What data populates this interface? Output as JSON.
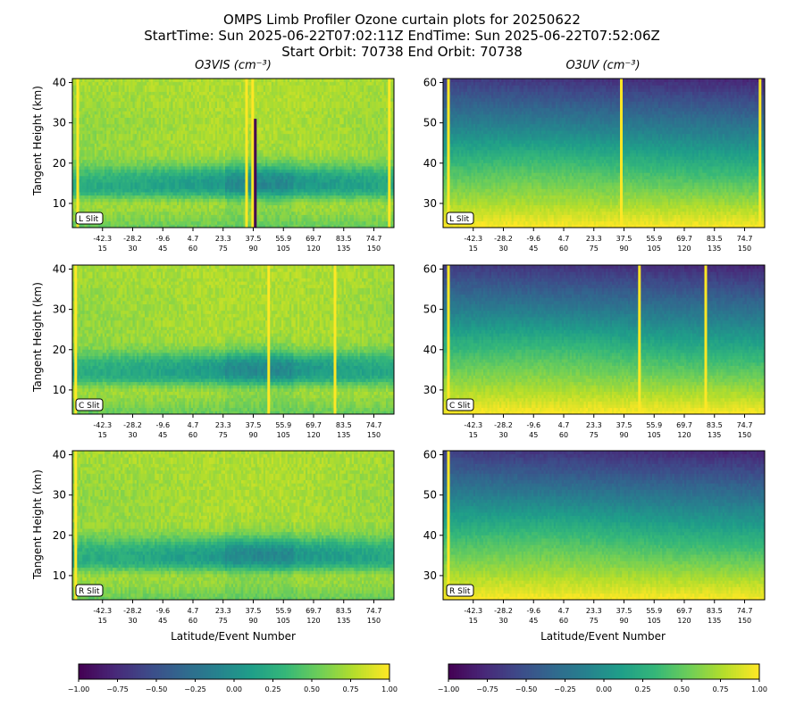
{
  "figure": {
    "title_lines": [
      "OMPS Limb Profiler Ozone curtain plots for 20250622",
      "StartTime: Sun 2025-06-22T07:02:11Z  EndTime: Sun 2025-06-22T07:52:06Z",
      "Start Orbit: 70738 End Orbit: 70738"
    ],
    "left_title": "O3VIS (cm⁻³)",
    "right_title": "O3UV (cm⁻³)",
    "ylabel": "Tangent Height (km)",
    "xlabel": "Latitude/Event Number"
  },
  "colormap": "viridis",
  "colors": {
    "line_yellow": "#fde725",
    "dark": "#440154"
  },
  "chart_data": [
    {
      "type": "heatmap",
      "column": "O3VIS",
      "slit": "L Slit",
      "yticks": [
        10,
        20,
        30,
        40
      ],
      "ylim": [
        4,
        41
      ],
      "xticks_lat": [
        "-42.3",
        "-28.2",
        "-9.6",
        "4.7",
        "23.3",
        "37.5",
        "55.9",
        "69.7",
        "83.5",
        "74.7"
      ],
      "xticks_event": [
        "15",
        "30",
        "45",
        "60",
        "75",
        "90",
        "105",
        "120",
        "135",
        "150"
      ],
      "bright_lines_event": [
        2,
        86,
        89,
        157
      ],
      "dark_anomaly_event": 89
    },
    {
      "type": "heatmap",
      "column": "O3UV",
      "slit": "L Slit",
      "yticks": [
        30,
        40,
        50,
        60
      ],
      "ylim": [
        24,
        61
      ],
      "xticks_lat": [
        "-42.3",
        "-28.2",
        "-9.6",
        "4.7",
        "23.3",
        "37.5",
        "55.9",
        "69.7",
        "83.5",
        "74.7"
      ],
      "xticks_event": [
        "15",
        "30",
        "45",
        "60",
        "75",
        "90",
        "105",
        "120",
        "135",
        "150"
      ],
      "bright_lines_event": [
        2,
        88,
        157
      ]
    },
    {
      "type": "heatmap",
      "column": "O3VIS",
      "slit": "C Slit",
      "yticks": [
        10,
        20,
        30,
        40
      ],
      "ylim": [
        4,
        41
      ],
      "xticks_lat": [
        "-42.3",
        "-28.2",
        "-9.6",
        "4.7",
        "23.3",
        "37.5",
        "55.9",
        "69.7",
        "83.5",
        "74.7"
      ],
      "xticks_event": [
        "15",
        "30",
        "45",
        "60",
        "75",
        "90",
        "105",
        "120",
        "135",
        "150"
      ],
      "bright_lines_event": [
        1,
        97,
        130
      ]
    },
    {
      "type": "heatmap",
      "column": "O3UV",
      "slit": "C Slit",
      "yticks": [
        30,
        40,
        50,
        60
      ],
      "ylim": [
        24,
        61
      ],
      "xticks_lat": [
        "-42.3",
        "-28.2",
        "-9.6",
        "4.7",
        "23.3",
        "37.5",
        "55.9",
        "69.7",
        "83.5",
        "74.7"
      ],
      "xticks_event": [
        "15",
        "30",
        "45",
        "60",
        "75",
        "90",
        "105",
        "120",
        "135",
        "150"
      ],
      "bright_lines_event": [
        2,
        97,
        130
      ]
    },
    {
      "type": "heatmap",
      "column": "O3VIS",
      "slit": "R Slit",
      "yticks": [
        10,
        20,
        30,
        40
      ],
      "ylim": [
        4,
        41
      ],
      "xticks_lat": [
        "-42.3",
        "-28.2",
        "-9.6",
        "4.7",
        "23.3",
        "37.5",
        "55.9",
        "69.7",
        "83.5",
        "74.7"
      ],
      "xticks_event": [
        "15",
        "30",
        "45",
        "60",
        "75",
        "90",
        "105",
        "120",
        "135",
        "150"
      ],
      "bright_lines_event": [
        1
      ]
    },
    {
      "type": "heatmap",
      "column": "O3UV",
      "slit": "R Slit",
      "yticks": [
        30,
        40,
        50,
        60
      ],
      "ylim": [
        24,
        61
      ],
      "xticks_lat": [
        "-42.3",
        "-28.2",
        "-9.6",
        "4.7",
        "23.3",
        "37.5",
        "55.9",
        "69.7",
        "83.5",
        "74.7"
      ],
      "xticks_event": [
        "15",
        "30",
        "45",
        "60",
        "75",
        "90",
        "105",
        "120",
        "135",
        "150"
      ],
      "bright_lines_event": [
        2
      ]
    }
  ],
  "colorbars": [
    {
      "ticks": [
        "−1.00",
        "−0.75",
        "−0.50",
        "−0.25",
        "0.00",
        "0.25",
        "0.50",
        "0.75",
        "1.00"
      ]
    },
    {
      "ticks": [
        "−1.00",
        "−0.75",
        "−0.50",
        "−0.25",
        "0.00",
        "0.25",
        "0.50",
        "0.75",
        "1.00"
      ]
    }
  ]
}
